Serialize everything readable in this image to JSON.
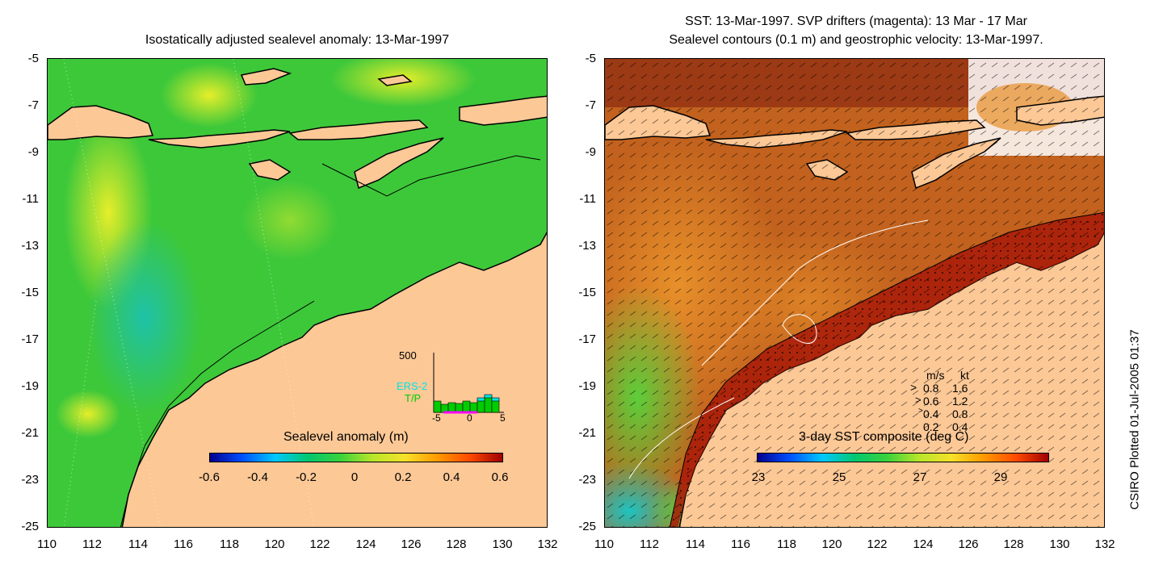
{
  "left_panel": {
    "title": "Isostatically adjusted sealevel anomaly: 13-Mar-1997",
    "y_ticks": [
      "-5",
      "-7",
      "-9",
      "-11",
      "-13",
      "-15",
      "-17",
      "-19",
      "-21",
      "-23",
      "-25"
    ],
    "x_ticks": [
      "110",
      "112",
      "114",
      "116",
      "118",
      "120",
      "122",
      "124",
      "126",
      "128",
      "130",
      "132"
    ],
    "colorbar_title": "Sealevel anomaly (m)",
    "colorbar_ticks": [
      "-0.6",
      "-0.4",
      "-0.2",
      "0",
      "0.2",
      "0.4",
      "0.6"
    ],
    "histogram": {
      "ymax_label": "500",
      "series": [
        "ERS-2",
        "T/P"
      ],
      "x_ticks": [
        "-5",
        "0",
        "5"
      ],
      "ers2_color": "#00e5e5",
      "tp_color": "#00cc00"
    }
  },
  "right_panel": {
    "title_line1": "SST: 13-Mar-1997. SVP drifters (magenta): 13 Mar - 17 Mar",
    "title_line2": "Sealevel contours (0.1 m) and geostrophic velocity: 13-Mar-1997.",
    "y_ticks": [
      "-5",
      "-7",
      "-9",
      "-11",
      "-13",
      "-15",
      "-17",
      "-19",
      "-21",
      "-23",
      "-25"
    ],
    "x_ticks": [
      "110",
      "112",
      "114",
      "116",
      "118",
      "120",
      "122",
      "124",
      "126",
      "128",
      "130",
      "132"
    ],
    "colorbar_title": "3-day SST composite (deg C)",
    "colorbar_ticks": [
      "23",
      "25",
      "27",
      "29"
    ],
    "legend": {
      "header_ms": "m/s",
      "header_kt": "kt",
      "rows": [
        {
          "ms": "0.8",
          "kt": "1.6"
        },
        {
          "ms": "0.6",
          "kt": "1.2"
        },
        {
          "ms": "0.4",
          "kt": "0.8"
        },
        {
          "ms": "0.2",
          "kt": "0.4"
        }
      ]
    }
  },
  "footer": {
    "credit": "CSIRO Plotted 01-Jul-2005 01:37"
  },
  "colors": {
    "land": "#fcc896",
    "ocean_left": "#33cc33",
    "ocean_right": "#c2621e"
  }
}
